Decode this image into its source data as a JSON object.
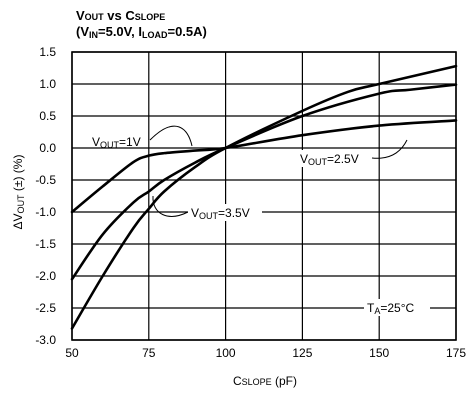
{
  "chart_data": {
    "type": "line",
    "title_line1": {
      "v": "V",
      "v_sub": "OUT",
      "mid": " vs C",
      "c_sub": "SLOPE"
    },
    "title_line2": {
      "open": "(V",
      "in_sub": "IN",
      "mid": "=5.0V, I",
      "load_sub": "LOAD",
      "close": "=0.5A)"
    },
    "xlabel": {
      "main": "C",
      "sub": "SLOPE",
      "unit": " (pF)"
    },
    "ylabel": {
      "delta": "ΔV",
      "sub": "OUT",
      "rest": " (±) (%)"
    },
    "xlim": [
      50,
      175
    ],
    "ylim": [
      -3.0,
      1.5
    ],
    "x_ticks": [
      50,
      75,
      100,
      125,
      150,
      175
    ],
    "x_tick_labels": [
      "50",
      "75",
      "100",
      "125",
      "150",
      "175"
    ],
    "y_ticks": [
      1.5,
      1.0,
      0.5,
      0.0,
      -0.5,
      -1.0,
      -1.5,
      -2.0,
      -2.5,
      -3.0
    ],
    "y_tick_labels": [
      "1.5",
      "1.0",
      "0.5",
      "0.0",
      "-0.5",
      "-1.0",
      "-1.5",
      "-2.0",
      "-2.5",
      "-3.0"
    ],
    "grid": true,
    "series": [
      {
        "name": "VOUT=1V",
        "label": {
          "v": "V",
          "sub": "OUT",
          "rest": "=1V"
        },
        "x": [
          50,
          60,
          70,
          75,
          80,
          90,
          100,
          125,
          150,
          175
        ],
        "y": [
          -1.0,
          -0.6,
          -0.22,
          -0.12,
          -0.08,
          -0.04,
          0.0,
          0.2,
          0.35,
          0.43
        ]
      },
      {
        "name": "VOUT=2.5V",
        "label": {
          "v": "V",
          "sub": "OUT",
          "rest": "=2.5V"
        },
        "x": [
          50,
          60,
          70,
          75,
          80,
          90,
          100,
          125,
          150,
          160,
          175
        ],
        "y": [
          -2.05,
          -1.35,
          -0.85,
          -0.68,
          -0.5,
          -0.23,
          0.0,
          0.5,
          0.85,
          0.91,
          0.99
        ]
      },
      {
        "name": "VOUT=3.5V",
        "label": {
          "v": "V",
          "sub": "OUT",
          "rest": "=3.5V"
        },
        "x": [
          50,
          60,
          70,
          75,
          80,
          90,
          100,
          125,
          140,
          150,
          175
        ],
        "y": [
          -2.82,
          -2.0,
          -1.25,
          -0.95,
          -0.68,
          -0.3,
          0.0,
          0.58,
          0.88,
          1.0,
          1.28
        ]
      }
    ],
    "annotation": {
      "t": "T",
      "sub": "A",
      "rest": "=25°C"
    }
  }
}
